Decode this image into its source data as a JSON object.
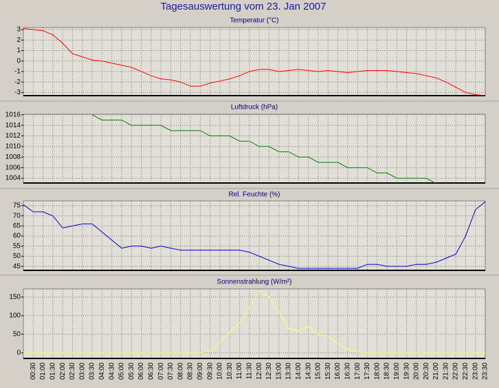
{
  "title": "Tagesauswertung vom 23. Jan 2007",
  "chart_data": [
    {
      "type": "line",
      "title": "Temperatur (°C)",
      "color": "#ff0000",
      "values": [
        3.1,
        3.0,
        2.9,
        2.5,
        1.7,
        0.7,
        0.4,
        0.1,
        0.0,
        -0.2,
        -0.4,
        -0.6,
        -1.0,
        -1.4,
        -1.7,
        -1.8,
        -2.0,
        -2.4,
        -2.4,
        -2.1,
        -1.9,
        -1.7,
        -1.4,
        -1.0,
        -0.8,
        -0.8,
        -1.0,
        -0.9,
        -0.8,
        -0.9,
        -1.0,
        -0.9,
        -1.0,
        -1.1,
        -1.0,
        -0.9,
        -0.9,
        -0.9,
        -1.0,
        -1.1,
        -1.2,
        -1.4,
        -1.6,
        -2.0,
        -2.5,
        -3.0,
        -3.2,
        -3.3
      ],
      "ylim": [
        -3.3,
        3.2
      ],
      "yticks": [
        3,
        2,
        1,
        0,
        -1,
        -2,
        -3
      ],
      "grid": true
    },
    {
      "type": "line",
      "title": "Luftdruck (hPa)",
      "color": "#008000",
      "values": [
        null,
        null,
        null,
        null,
        null,
        null,
        null,
        1016,
        1015,
        1015,
        1015,
        1014,
        1014,
        1014,
        1014,
        1013,
        1013,
        1013,
        1013,
        1012,
        1012,
        1012,
        1011,
        1011,
        1010,
        1010,
        1009,
        1009,
        1008,
        1008,
        1007,
        1007,
        1007,
        1006,
        1006,
        1006,
        1005,
        1005,
        1004,
        1004,
        1004,
        1004,
        1003,
        null,
        null,
        null,
        null,
        null
      ],
      "ylim": [
        1003.1,
        1016.1
      ],
      "yticks": [
        1016,
        1014,
        1012,
        1010,
        1008,
        1006,
        1004
      ],
      "grid": true
    },
    {
      "type": "line",
      "title": "Rel. Feuchte (%)",
      "color": "#0000cc",
      "values": [
        75.5,
        72,
        72,
        70,
        64,
        65,
        66,
        66,
        62,
        58,
        54,
        55,
        55,
        54,
        55,
        54,
        53,
        53,
        53,
        53,
        53,
        53,
        53,
        52,
        50,
        48,
        46,
        45,
        44,
        44,
        44,
        44,
        44,
        44,
        44,
        46,
        46,
        45,
        45,
        45,
        46,
        46,
        47,
        49,
        51,
        60,
        73,
        77
      ],
      "ylim": [
        43,
        77.4
      ],
      "yticks": [
        75,
        70,
        65,
        60,
        55,
        50,
        45
      ],
      "grid": true
    },
    {
      "type": "line",
      "title": "Sonnenstrahlung (W/m²)",
      "color": "#ffff66",
      "values": [
        0,
        0,
        0,
        0,
        0,
        0,
        0,
        0,
        0,
        0,
        0,
        0,
        0,
        0,
        0,
        0,
        0,
        0,
        0,
        5,
        30,
        55,
        80,
        120,
        165,
        150,
        110,
        65,
        60,
        70,
        50,
        45,
        25,
        10,
        2,
        0,
        0,
        0,
        0,
        0,
        0,
        0,
        0,
        0,
        0,
        0,
        0,
        0
      ],
      "ylim": [
        -15,
        172
      ],
      "yticks": [
        150,
        100,
        50,
        0
      ],
      "grid": true,
      "categories": [
        null,
        "00:30",
        "01:00",
        "01:30",
        "02:00",
        "02:30",
        "03:00",
        "03:30",
        "04:00",
        "04:30",
        "05:00",
        "05:30",
        "06:00",
        "06:30",
        "07:00",
        "07:30",
        "08:00",
        "08:30",
        "09:00",
        "09:30",
        "10:00",
        "10:30",
        "11:00",
        "11:30",
        "12:00",
        "12:30",
        "13:00",
        "13:30",
        "14:00",
        "14:30",
        "15:00",
        "15:30",
        "16:00",
        "16:30",
        "17:00",
        "17:30",
        "18:00",
        "18:30",
        "19:00",
        "19:30",
        "20:00",
        "20:30",
        "21:00",
        "21:30",
        "22:00",
        "22:30",
        "23:00",
        "23:30"
      ]
    }
  ]
}
